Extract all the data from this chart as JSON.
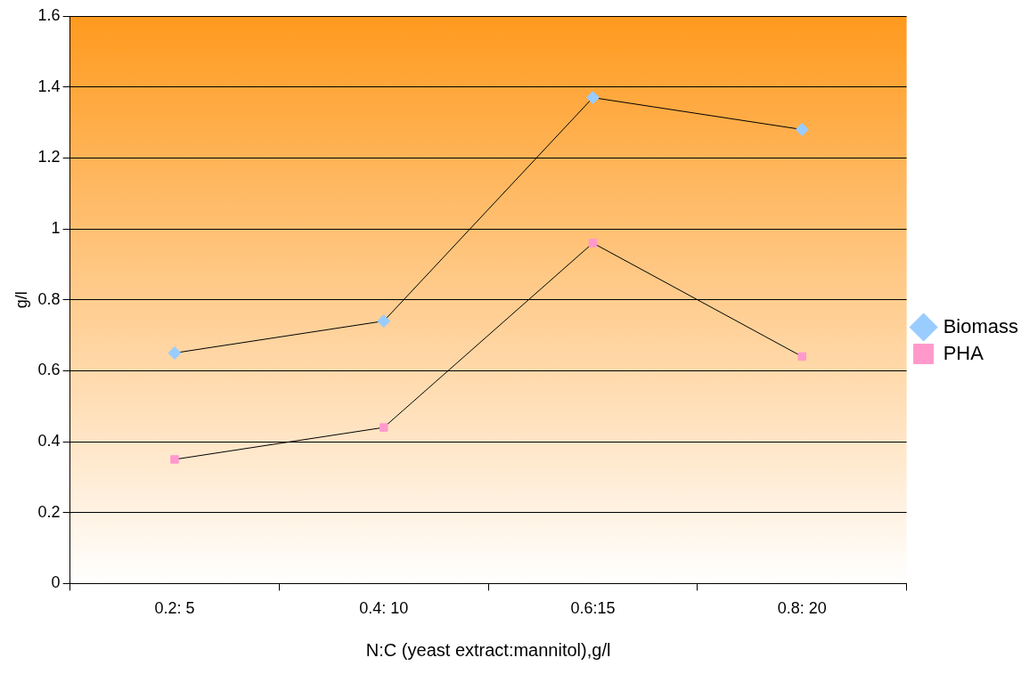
{
  "chart_data": {
    "type": "line",
    "xlabel": "N:C (yeast extract:mannitol),g/l",
    "ylabel": "g/l",
    "categories": [
      "0.2: 5",
      "0.4: 10",
      "0.6:15",
      "0.8: 20"
    ],
    "series": [
      {
        "name": "Biomass",
        "color": "#99ccff",
        "marker": "diamond",
        "values": [
          0.65,
          0.74,
          1.37,
          1.28
        ]
      },
      {
        "name": "PHA",
        "color": "#ff99cc",
        "marker": "square",
        "values": [
          0.35,
          0.44,
          0.96,
          0.64
        ]
      }
    ],
    "ylim": [
      0,
      1.6
    ],
    "yticks": [
      0,
      0.2,
      0.4,
      0.6,
      0.8,
      1,
      1.2,
      1.4,
      1.6
    ],
    "grid": "y",
    "legend": "right"
  }
}
